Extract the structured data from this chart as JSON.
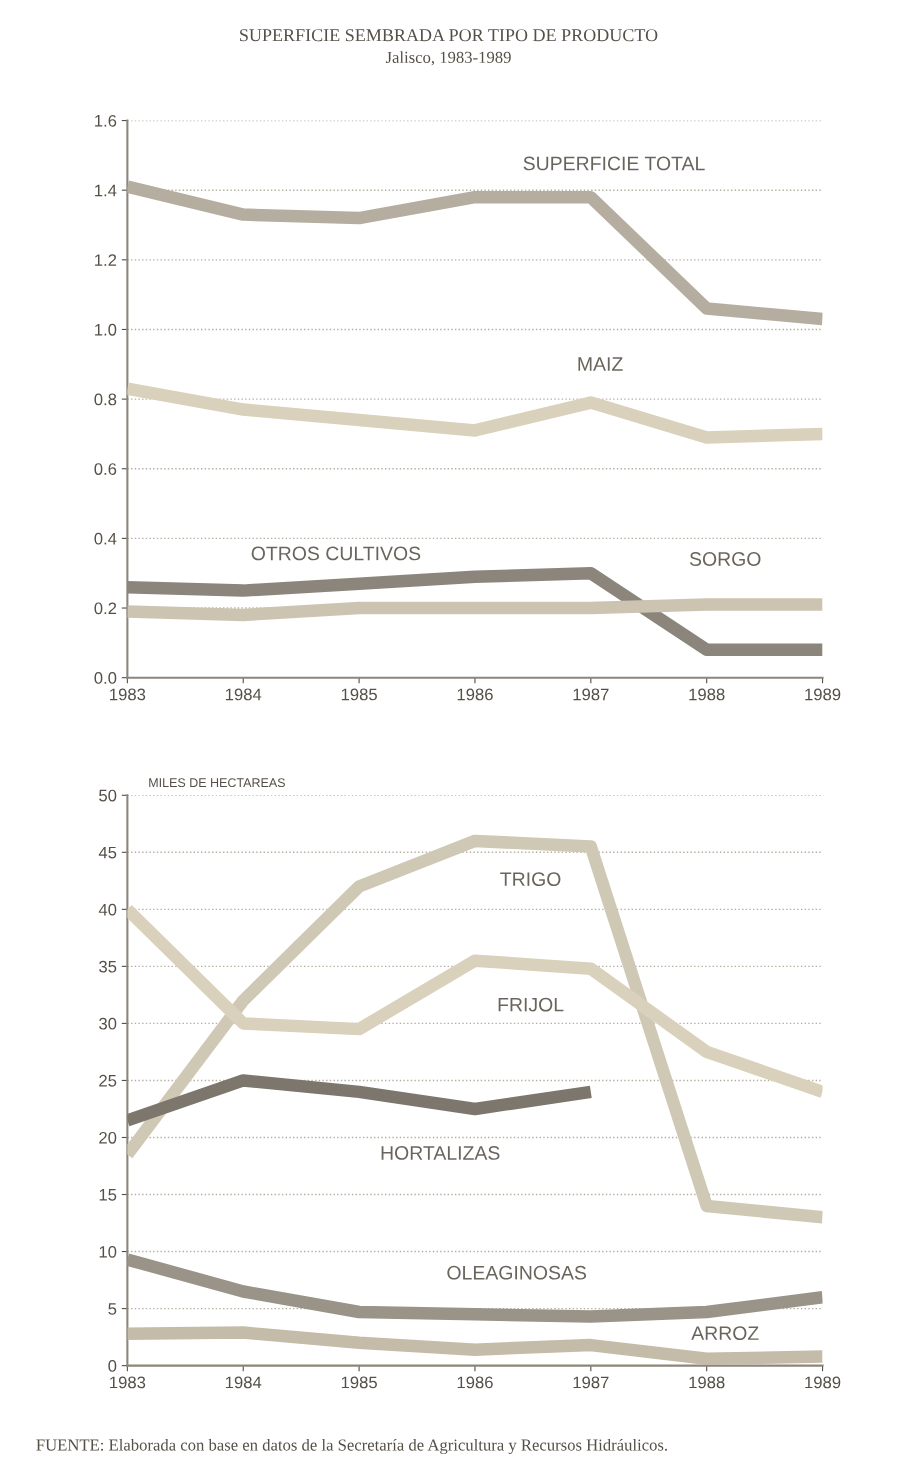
{
  "chart_data": [
    {
      "type": "line",
      "title": "SUPERFICIE SEMBRADA POR TIPO DE PRODUCTO",
      "subtitle": "Jalisco, 1983-1989",
      "x": [
        1983,
        1984,
        1985,
        1986,
        1987,
        1988,
        1989
      ],
      "xlim": [
        1983,
        1989
      ],
      "xticks": [
        1983,
        1984,
        1985,
        1986,
        1987,
        1988,
        1989
      ],
      "ylim": [
        0,
        1.6
      ],
      "yticks": [
        {
          "value": 0,
          "label": "0.0"
        },
        {
          "value": 0.2,
          "label": "0.2"
        },
        {
          "value": 0.4,
          "label": "0.4"
        },
        {
          "value": 0.6,
          "label": "0.6"
        },
        {
          "value": 0.8,
          "label": "0.8"
        },
        {
          "value": 1.0,
          "label": "1.0"
        },
        {
          "value": 1.2,
          "label": "1.2"
        },
        {
          "value": 1.4,
          "label": "1.4"
        },
        {
          "value": 1.6,
          "label": "1.6"
        }
      ],
      "grid": "y",
      "legend": false,
      "marker": "none",
      "series": [
        {
          "name": "SUPERFICIE TOTAL",
          "color": "#b5ad9f",
          "values": [
            1.41,
            1.33,
            1.32,
            1.38,
            1.38,
            1.06,
            1.03
          ]
        },
        {
          "name": "MAIZ",
          "color": "#d9d1bb",
          "values": [
            0.83,
            0.77,
            0.74,
            0.71,
            0.79,
            0.69,
            0.7
          ]
        },
        {
          "name": "OTROS CULTIVOS",
          "color": "#8c857b",
          "values": [
            0.26,
            0.25,
            0.27,
            0.29,
            0.3,
            0.08,
            0.08
          ]
        },
        {
          "name": "SORGO",
          "color": "#ccc4b0",
          "values": [
            0.19,
            0.18,
            0.2,
            0.2,
            0.2,
            0.21,
            0.21
          ]
        }
      ]
    },
    {
      "type": "line",
      "ylabel": "MILES DE HECTAREAS",
      "x": [
        1983,
        1984,
        1985,
        1986,
        1987,
        1988,
        1989
      ],
      "xlim": [
        1983,
        1989
      ],
      "xticks": [
        1983,
        1984,
        1985,
        1986,
        1987,
        1988,
        1989
      ],
      "ylim": [
        0,
        50
      ],
      "yticks": [
        0,
        5,
        10,
        15,
        20,
        25,
        30,
        35,
        40,
        45,
        50
      ],
      "grid": "y",
      "legend": false,
      "marker": "none",
      "series": [
        {
          "name": "TRIGO",
          "color": "#cfc8b4",
          "values": [
            18.5,
            32,
            42,
            46,
            45.5,
            14,
            13
          ]
        },
        {
          "name": "FRIJOL",
          "color": "#d9d1bb",
          "values": [
            40,
            30,
            29.5,
            35.5,
            34.8,
            27.5,
            24
          ]
        },
        {
          "name": "HORTALIZAS",
          "color": "#7d766d",
          "values": [
            21.5,
            25,
            24,
            22.5,
            24,
            null,
            null
          ]
        },
        {
          "name": "OLEAGINOSAS",
          "color": "#9a9388",
          "values": [
            9.3,
            6.5,
            4.7,
            4.5,
            4.3,
            4.7,
            6.0
          ]
        },
        {
          "name": "ARROZ",
          "color": "#c4bca8",
          "values": [
            2.8,
            2.9,
            2.0,
            1.4,
            1.8,
            0.6,
            0.8
          ]
        }
      ],
      "annotations": [
        "FUENTE: Elaborada con base en datos de la Secretaría de Agricultura y Recursos Hidráulicos."
      ]
    }
  ]
}
